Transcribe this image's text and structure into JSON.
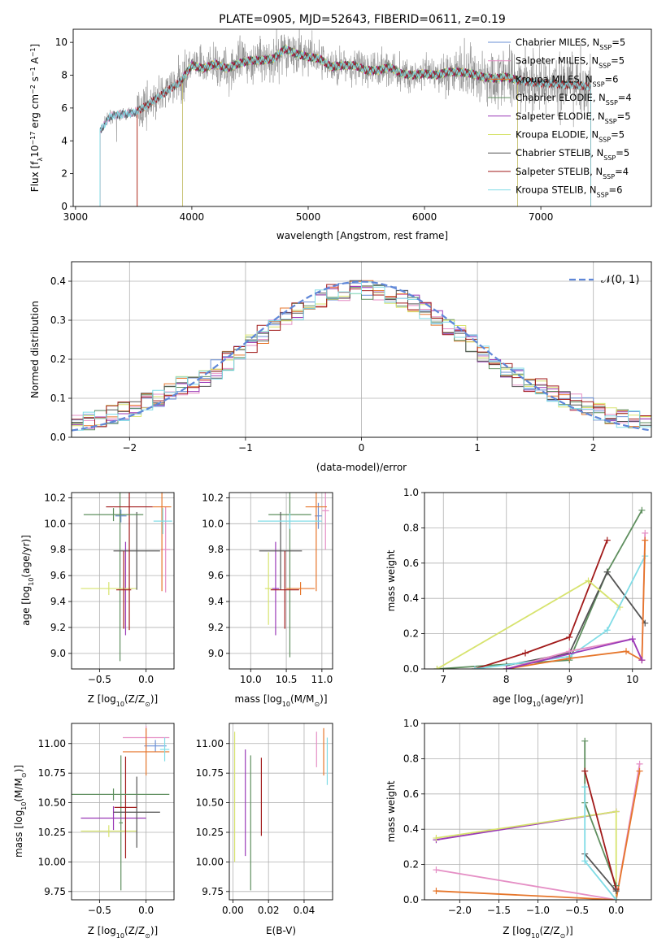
{
  "colors": {
    "blue": "#6a8fd6",
    "pink": "#e58fc5",
    "orange": "#e6762b",
    "olive": "#5f8f5f",
    "purple": "#9b3bb8",
    "yellow": "#d7e36e",
    "gray": "#555555",
    "red": "#a11a1a",
    "cyan": "#80dce6",
    "noise": "#8c8c8c",
    "normal": "#5f87d8"
  },
  "chart_data": [
    {
      "id": "spectrum",
      "type": "line",
      "title": "PLATE=0905, MJD=52643, FIBERID=0611, z=0.19",
      "xlabel": "wavelength [Angstrom, rest frame]",
      "ylabel": "Flux [f",
      "ylabel_sub": "λ",
      "ylabel_mid": "10",
      "ylabel_sup1": "−17",
      "ylabel_rest": " erg cm",
      "ylabel_sup2": "−2",
      "ylabel_rest2": " s",
      "ylabel_sup3": "−1",
      "ylabel_rest3": " A",
      "ylabel_sup4": "−1",
      "ylabel_end": "]",
      "xlim": [
        2980,
        7950
      ],
      "ylim": [
        0,
        10.8
      ],
      "xticks": [
        3000,
        4000,
        5000,
        6000,
        7000
      ],
      "yticks": [
        0,
        2,
        4,
        6,
        8,
        10
      ],
      "legend": [
        {
          "name": "Chabrier MILES, N",
          "sub": "SSP",
          "val": "=5",
          "color": "blue"
        },
        {
          "name": "Salpeter MILES, N",
          "sub": "SSP",
          "val": "=5",
          "color": "pink"
        },
        {
          "name": "Kroupa MILES, N",
          "sub": "SSP",
          "val": "=6",
          "color": "orange"
        },
        {
          "name": "Chabrier ELODIE, N",
          "sub": "SSP",
          "val": "=4",
          "color": "olive"
        },
        {
          "name": "Salpeter ELODIE, N",
          "sub": "SSP",
          "val": "=5",
          "color": "purple"
        },
        {
          "name": "Kroupa ELODIE, N",
          "sub": "SSP",
          "val": "=5",
          "color": "yellow"
        },
        {
          "name": "Chabrier STELIB, N",
          "sub": "SSP",
          "val": "=5",
          "color": "gray"
        },
        {
          "name": "Salpeter STELIB, N",
          "sub": "SSP",
          "val": "=4",
          "color": "red"
        },
        {
          "name": "Kroupa STELIB, N",
          "sub": "SSP",
          "val": "=6",
          "color": "cyan"
        }
      ],
      "model_continuum": [
        [
          3210,
          4.6
        ],
        [
          3300,
          5.5
        ],
        [
          3400,
          5.6
        ],
        [
          3500,
          5.7
        ],
        [
          3600,
          6.1
        ],
        [
          3700,
          6.6
        ],
        [
          3800,
          7.1
        ],
        [
          3900,
          7.6
        ],
        [
          4000,
          8.6
        ],
        [
          4100,
          8.4
        ],
        [
          4200,
          8.7
        ],
        [
          4300,
          8.4
        ],
        [
          4400,
          8.7
        ],
        [
          4500,
          8.9
        ],
        [
          4600,
          8.9
        ],
        [
          4700,
          9.0
        ],
        [
          4800,
          9.6
        ],
        [
          4900,
          9.3
        ],
        [
          5000,
          9.1
        ],
        [
          5100,
          9.0
        ],
        [
          5200,
          8.5
        ],
        [
          5300,
          8.6
        ],
        [
          5400,
          8.6
        ],
        [
          5500,
          8.3
        ],
        [
          5600,
          8.3
        ],
        [
          5700,
          8.5
        ],
        [
          5800,
          8.1
        ],
        [
          5900,
          8.0
        ],
        [
          6000,
          8.1
        ],
        [
          6100,
          8.0
        ],
        [
          6200,
          8.2
        ],
        [
          6300,
          8.2
        ],
        [
          6400,
          8.1
        ],
        [
          6500,
          7.9
        ],
        [
          6600,
          7.8
        ],
        [
          6700,
          7.9
        ],
        [
          6800,
          7.7
        ],
        [
          6900,
          7.6
        ],
        [
          7000,
          7.5
        ],
        [
          7100,
          7.5
        ],
        [
          7200,
          7.4
        ],
        [
          7300,
          7.4
        ],
        [
          7400,
          7.3
        ]
      ],
      "starts": {
        "blue": 3210,
        "cyan": 3210,
        "pink": 3210,
        "gray": 3210,
        "orange": 3530,
        "red": 3530,
        "olive": 3920,
        "purple": 3920,
        "yellow": 3920
      },
      "ends": {
        "blue": 7430,
        "cyan": 7430,
        "pink": 7430,
        "gray": 7430,
        "orange": 7430,
        "red": 7430,
        "olive": 6800,
        "purple": 6800,
        "yellow": 6800
      }
    },
    {
      "id": "residuals",
      "type": "histogram",
      "xlabel": "(data-model)/error",
      "ylabel": "Normed distribution",
      "xlim": [
        -2.5,
        2.5
      ],
      "ylim": [
        0,
        0.45
      ],
      "xticks": [
        -2,
        -1,
        0,
        1,
        2
      ],
      "yticks": [
        0.0,
        0.1,
        0.2,
        0.3,
        0.4
      ],
      "legend_label": "𝒩(0, 1)",
      "bin_width": 0.1,
      "series_colors": [
        "blue",
        "pink",
        "orange",
        "olive",
        "purple",
        "yellow",
        "gray",
        "red",
        "cyan"
      ]
    },
    {
      "id": "age_vs_Z",
      "type": "errorbar",
      "xlabel": "Z [log",
      "xlabel_sub": "10",
      "xlabel_rest": "(Z/Z",
      "xlabel_sun": "⊙",
      "xlabel_end": ")]",
      "ylabel": "age  [log",
      "ylabel_sub": "10",
      "ylabel_rest": "(age/yr)]",
      "xlim": [
        -0.8,
        0.3
      ],
      "ylim": [
        8.88,
        10.24
      ],
      "xticks": [
        -0.5,
        0.0
      ],
      "xticklabels": [
        "−0.5",
        "0.0"
      ],
      "yticks": [
        9.0,
        9.2,
        9.4,
        9.6,
        9.8,
        10.0,
        10.2
      ],
      "points": [
        {
          "c": "blue",
          "x": -0.27,
          "xe": 0.06,
          "y": 10.06,
          "ye": 0.05
        },
        {
          "c": "pink",
          "x": 0.21,
          "xe": 0.05,
          "y": 9.8,
          "ye": 0.33
        },
        {
          "c": "orange",
          "x": 0.17,
          "xe": 0.1,
          "y": 10.13,
          "ye": 0.65
        },
        {
          "c": "olive",
          "x": -0.28,
          "xe": 0.05,
          "y": 10.07,
          "ye": 1.13
        },
        {
          "c": "purple",
          "x": -0.22,
          "xe": 0.08,
          "y": 9.5,
          "ye": 0.36
        },
        {
          "c": "yellow",
          "x": -0.4,
          "xe": 0.3,
          "y": 9.5,
          "ye": 0.05
        },
        {
          "c": "gray",
          "x": -0.1,
          "xe": 0.25,
          "y": 9.79,
          "ye": 0.3
        },
        {
          "c": "red",
          "x": -0.18,
          "xe": 0.25,
          "y": 10.13,
          "ye": 0.95
        },
        {
          "c": "cyan",
          "x": 0.18,
          "xe": 0.1,
          "y": 10.02,
          "ye": 0.1
        },
        {
          "c": "red",
          "x": -0.24,
          "xe": 0.08,
          "y": 9.49,
          "ye": 0.3
        },
        {
          "c": "olive",
          "x": -0.35,
          "xe": 0.32,
          "y": 10.07,
          "ye": 0.05
        }
      ]
    },
    {
      "id": "age_vs_mass",
      "type": "errorbar",
      "xlabel": "mass [log",
      "xlabel_sub": "10",
      "xlabel_rest": "(M/M",
      "xlabel_sun": "⊙",
      "xlabel_end": ")]",
      "xlim": [
        9.7,
        11.15
      ],
      "ylim": [
        8.88,
        10.24
      ],
      "xticks": [
        10.0,
        10.5,
        11.0
      ],
      "xticklabels": [
        "10.0",
        "10.5",
        "11.0"
      ],
      "yticks": [
        9.0,
        9.2,
        9.4,
        9.6,
        9.8,
        10.0,
        10.2
      ],
      "points": [
        {
          "c": "blue",
          "x": 10.95,
          "xe": 0.05,
          "y": 10.06,
          "ye": 0.1
        },
        {
          "c": "pink",
          "x": 11.05,
          "xe": 0.05,
          "y": 10.1,
          "ye": 0.3
        },
        {
          "c": "orange",
          "x": 10.92,
          "xe": 0.15,
          "y": 10.13,
          "ye": 0.65
        },
        {
          "c": "olive",
          "x": 10.55,
          "xe": 0.3,
          "y": 10.07,
          "ye": 1.1
        },
        {
          "c": "purple",
          "x": 10.35,
          "xe": 0.05,
          "y": 9.5,
          "ye": 0.36
        },
        {
          "c": "yellow",
          "x": 10.25,
          "xe": 0.05,
          "y": 9.5,
          "ye": 0.28
        },
        {
          "c": "gray",
          "x": 10.42,
          "xe": 0.3,
          "y": 9.79,
          "ye": 0.3
        },
        {
          "c": "red",
          "x": 10.48,
          "xe": 0.2,
          "y": 9.49,
          "ye": 0.3
        },
        {
          "c": "cyan",
          "x": 10.55,
          "xe": 0.45,
          "y": 10.02,
          "ye": 0.06
        },
        {
          "c": "orange",
          "x": 10.7,
          "xe": 0.2,
          "y": 9.5,
          "ye": 0.05
        }
      ]
    },
    {
      "id": "weight_vs_age",
      "type": "line",
      "xlabel": "age  [log",
      "xlabel_sub": "10",
      "xlabel_rest": "(age/yr)]",
      "ylabel": "mass weight",
      "xlim": [
        6.7,
        10.3
      ],
      "ylim": [
        0,
        1.0
      ],
      "xticks": [
        7,
        8,
        9,
        10
      ],
      "yticks": [
        0.0,
        0.2,
        0.4,
        0.6,
        0.8,
        1.0
      ],
      "series": [
        {
          "c": "olive",
          "pts": [
            [
              6.9,
              0.0
            ],
            [
              9.0,
              0.05
            ],
            [
              9.6,
              0.55
            ],
            [
              10.15,
              0.9
            ]
          ]
        },
        {
          "c": "red",
          "pts": [
            [
              7.5,
              0.0
            ],
            [
              8.3,
              0.09
            ],
            [
              9.0,
              0.18
            ],
            [
              9.6,
              0.73
            ]
          ]
        },
        {
          "c": "gray",
          "pts": [
            [
              8.0,
              0.02
            ],
            [
              9.0,
              0.09
            ],
            [
              9.6,
              0.55
            ],
            [
              10.2,
              0.26
            ]
          ]
        },
        {
          "c": "yellow",
          "pts": [
            [
              6.9,
              0.0
            ],
            [
              9.3,
              0.5
            ],
            [
              9.8,
              0.35
            ]
          ]
        },
        {
          "c": "cyan",
          "pts": [
            [
              7.5,
              0.0
            ],
            [
              9.0,
              0.07
            ],
            [
              9.6,
              0.22
            ],
            [
              10.2,
              0.64
            ]
          ]
        },
        {
          "c": "pink",
          "pts": [
            [
              8.0,
              0.0
            ],
            [
              9.0,
              0.1
            ],
            [
              10.0,
              0.17
            ],
            [
              10.15,
              0.05
            ],
            [
              10.2,
              0.77
            ]
          ]
        },
        {
          "c": "orange",
          "pts": [
            [
              8.0,
              0.0
            ],
            [
              9.0,
              0.06
            ],
            [
              9.9,
              0.1
            ],
            [
              10.15,
              0.05
            ],
            [
              10.2,
              0.73
            ]
          ]
        },
        {
          "c": "purple",
          "pts": [
            [
              8.0,
              0.0
            ],
            [
              10.0,
              0.17
            ],
            [
              10.15,
              0.05
            ]
          ]
        }
      ]
    },
    {
      "id": "mass_vs_Z",
      "type": "errorbar",
      "xlabel": "Z [log",
      "xlabel_sub": "10",
      "xlabel_rest": "(Z/Z",
      "xlabel_sun": "⊙",
      "xlabel_end": ")]",
      "ylabel": "mass [log",
      "ylabel_sub": "10",
      "ylabel_rest": "(M/M",
      "ylabel_sun": "⊙",
      "ylabel_end": ")]",
      "xlim": [
        -0.8,
        0.3
      ],
      "ylim": [
        9.68,
        11.17
      ],
      "xticks": [
        -0.5,
        0.0
      ],
      "xticklabels": [
        "−0.5",
        "0.0"
      ],
      "yticks": [
        9.75,
        10.0,
        10.25,
        10.5,
        10.75,
        11.0
      ],
      "points": [
        {
          "c": "blue",
          "x": 0.1,
          "xe": 0.12,
          "y": 10.98,
          "ye": 0.05
        },
        {
          "c": "pink",
          "x": 0.0,
          "xe": 0.25,
          "y": 11.05,
          "ye": 0.1
        },
        {
          "c": "orange",
          "x": 0.0,
          "xe": 0.25,
          "y": 10.93,
          "ye": 0.2
        },
        {
          "c": "olive",
          "x": -0.27,
          "xe": 0.02,
          "y": 10.33,
          "ye": 0.57
        },
        {
          "c": "purple",
          "x": -0.35,
          "xe": 0.35,
          "y": 10.37,
          "ye": 0.1
        },
        {
          "c": "yellow",
          "x": -0.4,
          "xe": 0.3,
          "y": 10.26,
          "ye": 0.05
        },
        {
          "c": "gray",
          "x": -0.1,
          "xe": 0.25,
          "y": 10.42,
          "ye": 0.3
        },
        {
          "c": "red",
          "x": -0.22,
          "xe": 0.12,
          "y": 10.46,
          "ye": 0.43
        },
        {
          "c": "cyan",
          "x": 0.2,
          "xe": 0.05,
          "y": 10.95,
          "ye": 0.1
        },
        {
          "c": "olive",
          "x": -0.35,
          "xe": 0.6,
          "y": 10.57,
          "ye": 0.05
        }
      ]
    },
    {
      "id": "mass_vs_ebv",
      "type": "errorbar",
      "xlabel": "E(B-V)",
      "xlim": [
        -0.002,
        0.056
      ],
      "ylim": [
        9.68,
        11.17
      ],
      "xticks": [
        0.0,
        0.02,
        0.04
      ],
      "xticklabels": [
        "0.00",
        "0.02",
        "0.04"
      ],
      "yticks": [
        9.75,
        10.0,
        10.25,
        10.5,
        10.75,
        11.0
      ],
      "points": [
        {
          "c": "yellow",
          "x": 0.001,
          "y": 10.55,
          "ye": 0.55
        },
        {
          "c": "purple",
          "x": 0.007,
          "y": 10.5,
          "ye": 0.45
        },
        {
          "c": "olive",
          "x": 0.01,
          "y": 10.33,
          "ye": 0.57
        },
        {
          "c": "red",
          "x": 0.016,
          "y": 10.55,
          "ye": 0.33
        },
        {
          "c": "pink",
          "x": 0.047,
          "y": 10.95,
          "ye": 0.15
        },
        {
          "c": "orange",
          "x": 0.051,
          "y": 10.93,
          "ye": 0.2
        },
        {
          "c": "cyan",
          "x": 0.053,
          "y": 10.85,
          "ye": 0.2
        }
      ]
    },
    {
      "id": "weight_vs_Z",
      "type": "line",
      "xlabel": "Z [log",
      "xlabel_sub": "10",
      "xlabel_rest": "(Z/Z",
      "xlabel_sun": "⊙",
      "xlabel_end": ")]",
      "ylabel": "mass weight",
      "xlim": [
        -2.45,
        0.45
      ],
      "ylim": [
        0,
        1.0
      ],
      "xticks": [
        -2.0,
        -1.5,
        -1.0,
        -0.5,
        0.0
      ],
      "xticklabels": [
        "−2.0",
        "−1.5",
        "−1.0",
        "−0.5",
        "0.0"
      ],
      "yticks": [
        0.0,
        0.2,
        0.4,
        0.6,
        0.8,
        1.0
      ],
      "series": [
        {
          "c": "purple",
          "pts": [
            [
              -2.3,
              0.34
            ],
            [
              0.0,
              0.5
            ]
          ]
        },
        {
          "c": "yellow",
          "pts": [
            [
              -2.3,
              0.35
            ],
            [
              0.0,
              0.5
            ],
            [
              0.0,
              0.0
            ]
          ]
        },
        {
          "c": "pink",
          "pts": [
            [
              -2.3,
              0.17
            ],
            [
              0.0,
              0.0
            ],
            [
              0.3,
              0.77
            ]
          ]
        },
        {
          "c": "orange",
          "pts": [
            [
              -2.3,
              0.05
            ],
            [
              0.0,
              0.0
            ],
            [
              0.3,
              0.73
            ]
          ]
        },
        {
          "c": "olive",
          "pts": [
            [
              -0.4,
              0.9
            ],
            [
              -0.4,
              0.55
            ],
            [
              0.0,
              0.08
            ]
          ]
        },
        {
          "c": "red",
          "pts": [
            [
              -0.4,
              0.73
            ],
            [
              0.0,
              0.06
            ]
          ]
        },
        {
          "c": "gray",
          "pts": [
            [
              -0.4,
              0.26
            ],
            [
              0.0,
              0.05
            ]
          ]
        },
        {
          "c": "cyan",
          "pts": [
            [
              -0.4,
              0.64
            ],
            [
              -0.4,
              0.22
            ],
            [
              0.0,
              0.0
            ]
          ]
        }
      ]
    }
  ]
}
